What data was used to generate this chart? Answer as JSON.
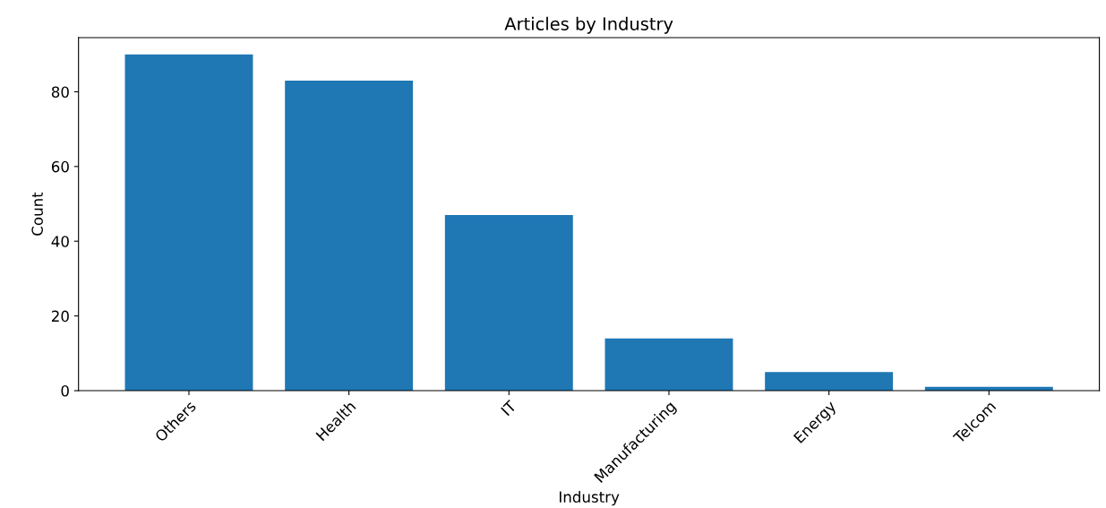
{
  "chart_data": {
    "type": "bar",
    "title": "Articles by Industry",
    "xlabel": "Industry",
    "ylabel": "Count",
    "categories": [
      "Others",
      "Health",
      "IT",
      "Manufacturing",
      "Energy",
      "Telcom"
    ],
    "values": [
      90,
      83,
      47,
      14,
      5,
      1
    ],
    "color": "#1f77b4",
    "ylim": [
      0,
      94.5
    ],
    "yticks": [
      0,
      20,
      40,
      60,
      80
    ],
    "grid": false
  }
}
